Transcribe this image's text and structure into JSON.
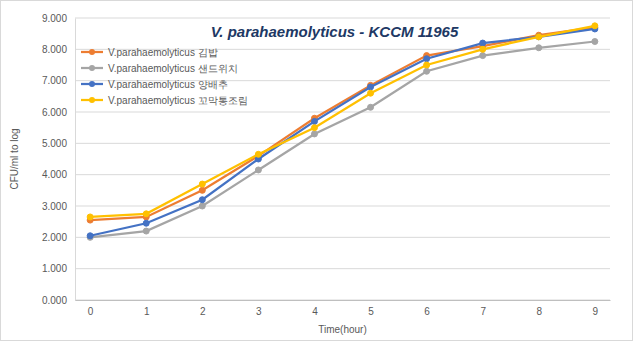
{
  "chart_data": {
    "type": "line",
    "title": "V. parahaemolyticus - KCCM 11965",
    "x_label": "Time(hour)",
    "y_label": "CFU/ml to log",
    "x": [
      0,
      1,
      2,
      3,
      4,
      5,
      6,
      7,
      8,
      9
    ],
    "xlim": [
      -0.27,
      9.27
    ],
    "xticks": [
      0,
      1,
      2,
      3,
      4,
      5,
      6,
      7,
      8,
      9
    ],
    "ylim": [
      0,
      9
    ],
    "yticks": [
      {
        "value": 0,
        "label": "0.000"
      },
      {
        "value": 1,
        "label": "1.000"
      },
      {
        "value": 2,
        "label": "2.000"
      },
      {
        "value": 3,
        "label": "3.000"
      },
      {
        "value": 4,
        "label": "4.000"
      },
      {
        "value": 5,
        "label": "5.000"
      },
      {
        "value": 6,
        "label": "6.000"
      },
      {
        "value": 7,
        "label": "7.000"
      },
      {
        "value": 8,
        "label": "8.000"
      },
      {
        "value": 9,
        "label": "9.000"
      }
    ],
    "grid": true,
    "legend": "top-left",
    "marker": "circle",
    "series": [
      {
        "name": "V.parahaemolyticus 김밥",
        "color": "#ed7d31",
        "values": [
          2.55,
          2.65,
          3.5,
          4.6,
          5.8,
          6.85,
          7.8,
          8.1,
          8.45,
          8.7
        ]
      },
      {
        "name": "V.parahaemolyticus 샌드위치",
        "color": "#a5a5a5",
        "values": [
          2.0,
          2.2,
          3.0,
          4.15,
          5.3,
          6.15,
          7.3,
          7.8,
          8.05,
          8.25
        ]
      },
      {
        "name": "V.parahaemolyticus 양배추",
        "color": "#4472c4",
        "values": [
          2.05,
          2.45,
          3.2,
          4.5,
          5.7,
          6.8,
          7.7,
          8.2,
          8.4,
          8.65
        ]
      },
      {
        "name": "V.parahaemolyticus 꼬막통조림",
        "color": "#ffc000",
        "values": [
          2.65,
          2.75,
          3.7,
          4.65,
          5.5,
          6.6,
          7.5,
          8.0,
          8.4,
          8.75
        ]
      }
    ]
  }
}
